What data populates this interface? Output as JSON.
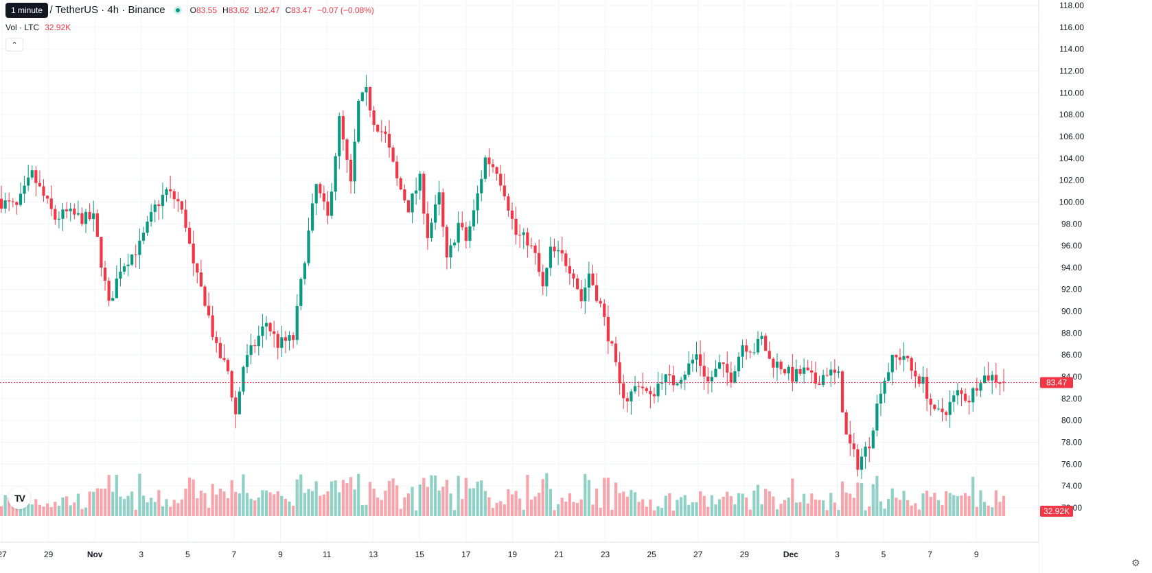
{
  "tooltip": "1 minute",
  "legend": {
    "symbol": "n / TetherUS · 4h · Binance",
    "open_key": "O",
    "open": "83.55",
    "high_key": "H",
    "high": "83.62",
    "low_key": "L",
    "low": "82.47",
    "close_key": "C",
    "close": "83.47",
    "change": "−0.07 (−0.08%)"
  },
  "volume": {
    "label": "Vol · LTC",
    "value": "32.92K"
  },
  "collapse_glyph": "⌃",
  "logo_text": "TV",
  "colors": {
    "up": "#089981",
    "down": "#f23645",
    "grid": "#f0f3fa",
    "axis_text": "#131722"
  },
  "chart_data": {
    "type": "candlestick",
    "interval": "4h",
    "y_axis_ticks": [
      "118.00",
      "116.00",
      "114.00",
      "112.00",
      "110.00",
      "108.00",
      "106.00",
      "104.00",
      "102.00",
      "100.00",
      "98.00",
      "96.00",
      "94.00",
      "92.00",
      "90.00",
      "88.00",
      "86.00",
      "84.00",
      "82.00",
      "80.00",
      "78.00",
      "76.00",
      "74.00",
      "72.00"
    ],
    "ylim": [
      71,
      119
    ],
    "x_axis_ticks": [
      "27",
      "29",
      "Nov",
      "3",
      "5",
      "7",
      "9",
      "11",
      "13",
      "15",
      "17",
      "19",
      "21",
      "23",
      "25",
      "27",
      "29",
      "Dec",
      "3",
      "5",
      "7",
      "9"
    ],
    "last_price_label": "83.47",
    "last_volume_label": "32.92K",
    "anchors": [
      {
        "i": 0,
        "p": 100
      },
      {
        "i": 4,
        "p": 99.5
      },
      {
        "i": 8,
        "p": 102.5
      },
      {
        "i": 11,
        "p": 100.5
      },
      {
        "i": 14,
        "p": 98.5
      },
      {
        "i": 17,
        "p": 99
      },
      {
        "i": 21,
        "p": 98.5
      },
      {
        "i": 24,
        "p": 98.5
      },
      {
        "i": 28,
        "p": 90.5
      },
      {
        "i": 31,
        "p": 94
      },
      {
        "i": 36,
        "p": 96
      },
      {
        "i": 40,
        "p": 99.5
      },
      {
        "i": 43,
        "p": 101
      },
      {
        "i": 46,
        "p": 100
      },
      {
        "i": 48,
        "p": 98
      },
      {
        "i": 50,
        "p": 94
      },
      {
        "i": 53,
        "p": 91
      },
      {
        "i": 56,
        "p": 86.5
      },
      {
        "i": 59,
        "p": 84.5
      },
      {
        "i": 61,
        "p": 80.5
      },
      {
        "i": 63,
        "p": 85
      },
      {
        "i": 66,
        "p": 87
      },
      {
        "i": 69,
        "p": 89
      },
      {
        "i": 72,
        "p": 87
      },
      {
        "i": 76,
        "p": 87.5
      },
      {
        "i": 79,
        "p": 95
      },
      {
        "i": 82,
        "p": 101.5
      },
      {
        "i": 85,
        "p": 98.5
      },
      {
        "i": 88,
        "p": 107.5
      },
      {
        "i": 91,
        "p": 101.5
      },
      {
        "i": 93,
        "p": 109
      },
      {
        "i": 95,
        "p": 110
      },
      {
        "i": 97,
        "p": 107.5
      },
      {
        "i": 100,
        "p": 106
      },
      {
        "i": 103,
        "p": 102
      },
      {
        "i": 106,
        "p": 99.5
      },
      {
        "i": 109,
        "p": 102
      },
      {
        "i": 111,
        "p": 97
      },
      {
        "i": 114,
        "p": 100.5
      },
      {
        "i": 116,
        "p": 94.5
      },
      {
        "i": 119,
        "p": 98
      },
      {
        "i": 121,
        "p": 96.5
      },
      {
        "i": 123,
        "p": 99
      },
      {
        "i": 126,
        "p": 104
      },
      {
        "i": 129,
        "p": 103
      },
      {
        "i": 131,
        "p": 101
      },
      {
        "i": 134,
        "p": 97
      },
      {
        "i": 137,
        "p": 96.5
      },
      {
        "i": 139,
        "p": 95
      },
      {
        "i": 141,
        "p": 92
      },
      {
        "i": 143,
        "p": 95.5
      },
      {
        "i": 146,
        "p": 95
      },
      {
        "i": 149,
        "p": 93.5
      },
      {
        "i": 151,
        "p": 91
      },
      {
        "i": 153,
        "p": 93.5
      },
      {
        "i": 156,
        "p": 90.5
      },
      {
        "i": 159,
        "p": 86.5
      },
      {
        "i": 161,
        "p": 83
      },
      {
        "i": 163,
        "p": 82
      },
      {
        "i": 166,
        "p": 83.5
      },
      {
        "i": 169,
        "p": 82
      },
      {
        "i": 172,
        "p": 84
      },
      {
        "i": 175,
        "p": 83.5
      },
      {
        "i": 178,
        "p": 84.5
      },
      {
        "i": 181,
        "p": 86
      },
      {
        "i": 184,
        "p": 83.5
      },
      {
        "i": 187,
        "p": 85
      },
      {
        "i": 190,
        "p": 84
      },
      {
        "i": 193,
        "p": 87
      },
      {
        "i": 196,
        "p": 86.5
      },
      {
        "i": 198,
        "p": 87.5
      },
      {
        "i": 200,
        "p": 85.5
      },
      {
        "i": 203,
        "p": 85
      },
      {
        "i": 206,
        "p": 84
      },
      {
        "i": 209,
        "p": 84.5
      },
      {
        "i": 212,
        "p": 83.5
      },
      {
        "i": 215,
        "p": 84.5
      },
      {
        "i": 218,
        "p": 84
      },
      {
        "i": 220,
        "p": 78.5
      },
      {
        "i": 223,
        "p": 76
      },
      {
        "i": 226,
        "p": 78
      },
      {
        "i": 229,
        "p": 83
      },
      {
        "i": 232,
        "p": 85.5
      },
      {
        "i": 235,
        "p": 86
      },
      {
        "i": 237,
        "p": 84.5
      },
      {
        "i": 240,
        "p": 83.5
      },
      {
        "i": 243,
        "p": 80.5
      },
      {
        "i": 246,
        "p": 81
      },
      {
        "i": 249,
        "p": 82.5
      },
      {
        "i": 252,
        "p": 82
      },
      {
        "i": 255,
        "p": 84
      },
      {
        "i": 258,
        "p": 84
      },
      {
        "i": 261,
        "p": 83.47
      }
    ]
  }
}
